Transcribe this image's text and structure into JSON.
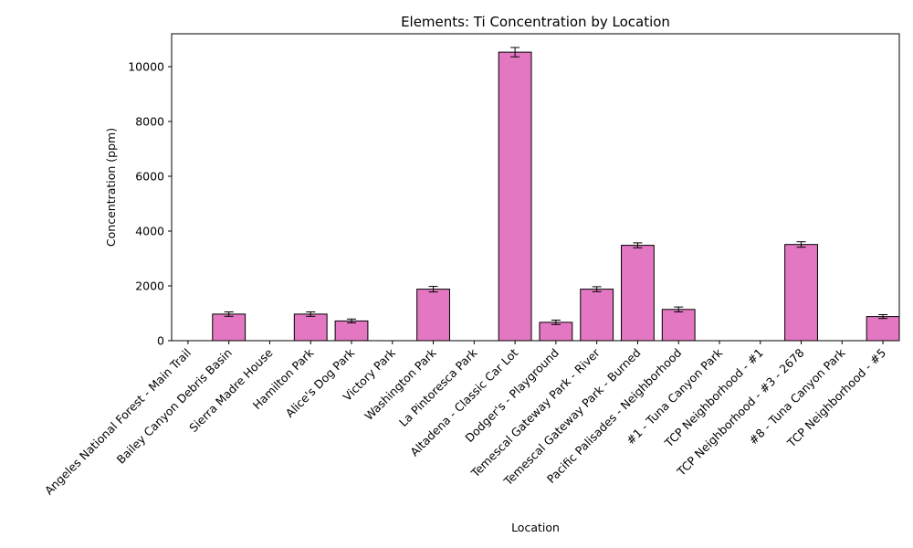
{
  "chart_data": {
    "type": "bar",
    "title": "Elements: Ti Concentration by Location",
    "xlabel": "Location",
    "ylabel": "Concentration (ppm)",
    "ylim": [
      0,
      11200
    ],
    "yticks": [
      0,
      2000,
      4000,
      6000,
      8000,
      10000
    ],
    "grid": false,
    "bar_color": "#e377c2",
    "edge_color": "#000000",
    "categories": [
      "Angeles National Forest - Main Trail",
      "Bailey Canyon Debris Basin",
      "Sierra Madre House",
      "Hamilton Park",
      "Alice's Dog Park",
      "Victory Park",
      "Washington Park",
      "La Pintoresca Park",
      "Altadena - Classic Car Lot",
      "Dodger's - Playground",
      "Temescal Gateway Park - River",
      "Temescal Gateway Park - Burned",
      "Pacific Palisades - Neighborhood",
      "#1 - Tuna Canyon Park",
      "TCP Neighborhood - #1",
      "TCP Neighborhood - #3 - 2678",
      "#8 - Tuna Canyon Park",
      "TCP Neighborhood - #5"
    ],
    "values": [
      0,
      970,
      0,
      970,
      720,
      0,
      1880,
      0,
      10530,
      670,
      1880,
      3480,
      1140,
      0,
      0,
      3510,
      0,
      880
    ],
    "errors": [
      0,
      80,
      0,
      80,
      70,
      0,
      100,
      0,
      170,
      80,
      90,
      90,
      90,
      0,
      0,
      100,
      0,
      70
    ]
  }
}
